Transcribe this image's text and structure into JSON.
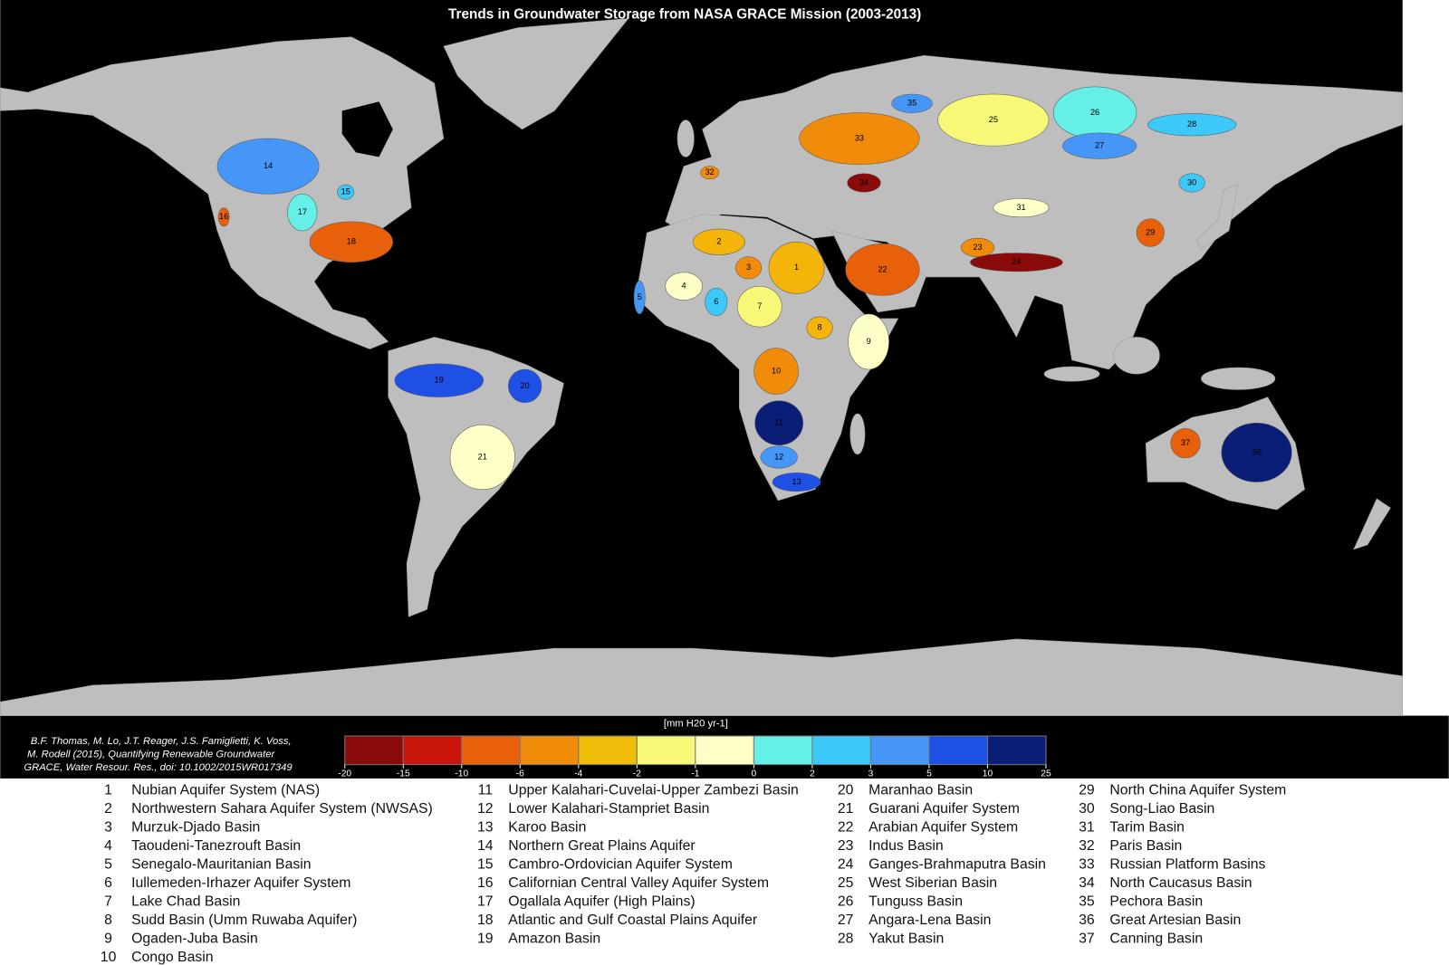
{
  "title": "Trends in Groundwater Storage from NASA GRACE Mission (2003-2013)",
  "citation": [
    "B.F. Thomas, M. Lo, J.T. Reager, J.S. Famiglietti, K. Voss,",
    "M. Rodell (2015), Quantifying Renewable Groundwater",
    "GRACE, Water Resour. Res., doi: 10.1002/2015WR017349"
  ],
  "colorbar": {
    "label": "[mm H20 yr-1]",
    "ticks": [
      -20,
      -15,
      -10,
      -6,
      -4,
      -2,
      -1,
      0,
      2,
      3,
      5,
      10,
      25
    ],
    "colors": [
      "#8b0a0a",
      "#c8140a",
      "#e8600a",
      "#f08c0a",
      "#f0be0a",
      "#f8f878",
      "#ffffc8",
      "#64f0e6",
      "#3cc8f8",
      "#4696f8",
      "#1e50e6",
      "#0a1e78"
    ]
  },
  "basins": [
    {
      "id": 1,
      "name": "Nubian Aquifer System (NAS)",
      "color": "#f5b40a"
    },
    {
      "id": 2,
      "name": "Northwestern Sahara Aquifer System (NWSAS)",
      "color": "#f5b40a"
    },
    {
      "id": 3,
      "name": "Murzuk-Djado Basin",
      "color": "#f08c0a"
    },
    {
      "id": 4,
      "name": "Taoudeni-Tanezrouft Basin",
      "color": "#ffffc8"
    },
    {
      "id": 5,
      "name": "Senegalo-Mauritanian Basin",
      "color": "#4696f8"
    },
    {
      "id": 6,
      "name": "Iullemeden-Irhazer Aquifer System",
      "color": "#3cc8f8"
    },
    {
      "id": 7,
      "name": "Lake Chad Basin",
      "color": "#f8f878"
    },
    {
      "id": 8,
      "name": "Sudd Basin (Umm Ruwaba Aquifer)",
      "color": "#f5b40a"
    },
    {
      "id": 9,
      "name": "Ogaden-Juba Basin",
      "color": "#ffffc8"
    },
    {
      "id": 10,
      "name": "Congo Basin",
      "color": "#f08c0a"
    },
    {
      "id": 11,
      "name": "Upper Kalahari-Cuvelai-Upper Zambezi Basin",
      "color": "#0a1e78"
    },
    {
      "id": 12,
      "name": "Lower Kalahari-Stampriet Basin",
      "color": "#4696f8"
    },
    {
      "id": 13,
      "name": "Karoo Basin",
      "color": "#1e50e6"
    },
    {
      "id": 14,
      "name": "Northern Great Plains Aquifer",
      "color": "#4696f8"
    },
    {
      "id": 15,
      "name": "Cambro-Ordovician Aquifer System",
      "color": "#3cc8f8"
    },
    {
      "id": 16,
      "name": "Californian Central Valley Aquifer System",
      "color": "#e8600a"
    },
    {
      "id": 17,
      "name": "Ogallala Aquifer (High Plains)",
      "color": "#64f0e6"
    },
    {
      "id": 18,
      "name": "Atlantic and Gulf Coastal Plains Aquifer",
      "color": "#e8600a"
    },
    {
      "id": 19,
      "name": "Amazon Basin",
      "color": "#1e50e6"
    },
    {
      "id": 20,
      "name": "Maranhao Basin",
      "color": "#1e50e6"
    },
    {
      "id": 21,
      "name": "Guarani Aquifer System",
      "color": "#ffffc8"
    },
    {
      "id": 22,
      "name": "Arabian Aquifer System",
      "color": "#e8600a"
    },
    {
      "id": 23,
      "name": "Indus Basin",
      "color": "#f08c0a"
    },
    {
      "id": 24,
      "name": "Ganges-Brahmaputra Basin",
      "color": "#8b0a0a"
    },
    {
      "id": 25,
      "name": "West Siberian Basin",
      "color": "#f8f878"
    },
    {
      "id": 26,
      "name": "Tunguss Basin",
      "color": "#64f0e6"
    },
    {
      "id": 27,
      "name": "Angara-Lena Basin",
      "color": "#4696f8"
    },
    {
      "id": 28,
      "name": "Yakut Basin",
      "color": "#3cc8f8"
    },
    {
      "id": 29,
      "name": "North China Aquifer System",
      "color": "#e8600a"
    },
    {
      "id": 30,
      "name": "Song-Liao Basin",
      "color": "#3cc8f8"
    },
    {
      "id": 31,
      "name": "Tarim Basin",
      "color": "#ffffc8"
    },
    {
      "id": 32,
      "name": "Paris Basin",
      "color": "#f08c0a"
    },
    {
      "id": 33,
      "name": "Russian Platform Basins",
      "color": "#f08c0a"
    },
    {
      "id": 34,
      "name": "North Caucasus Basin",
      "color": "#8b0a0a"
    },
    {
      "id": 35,
      "name": "Pechora Basin",
      "color": "#4696f8"
    },
    {
      "id": 36,
      "name": "Great Artesian Basin",
      "color": "#0a1e78"
    },
    {
      "id": 37,
      "name": "Canning Basin",
      "color": "#e8600a"
    }
  ]
}
